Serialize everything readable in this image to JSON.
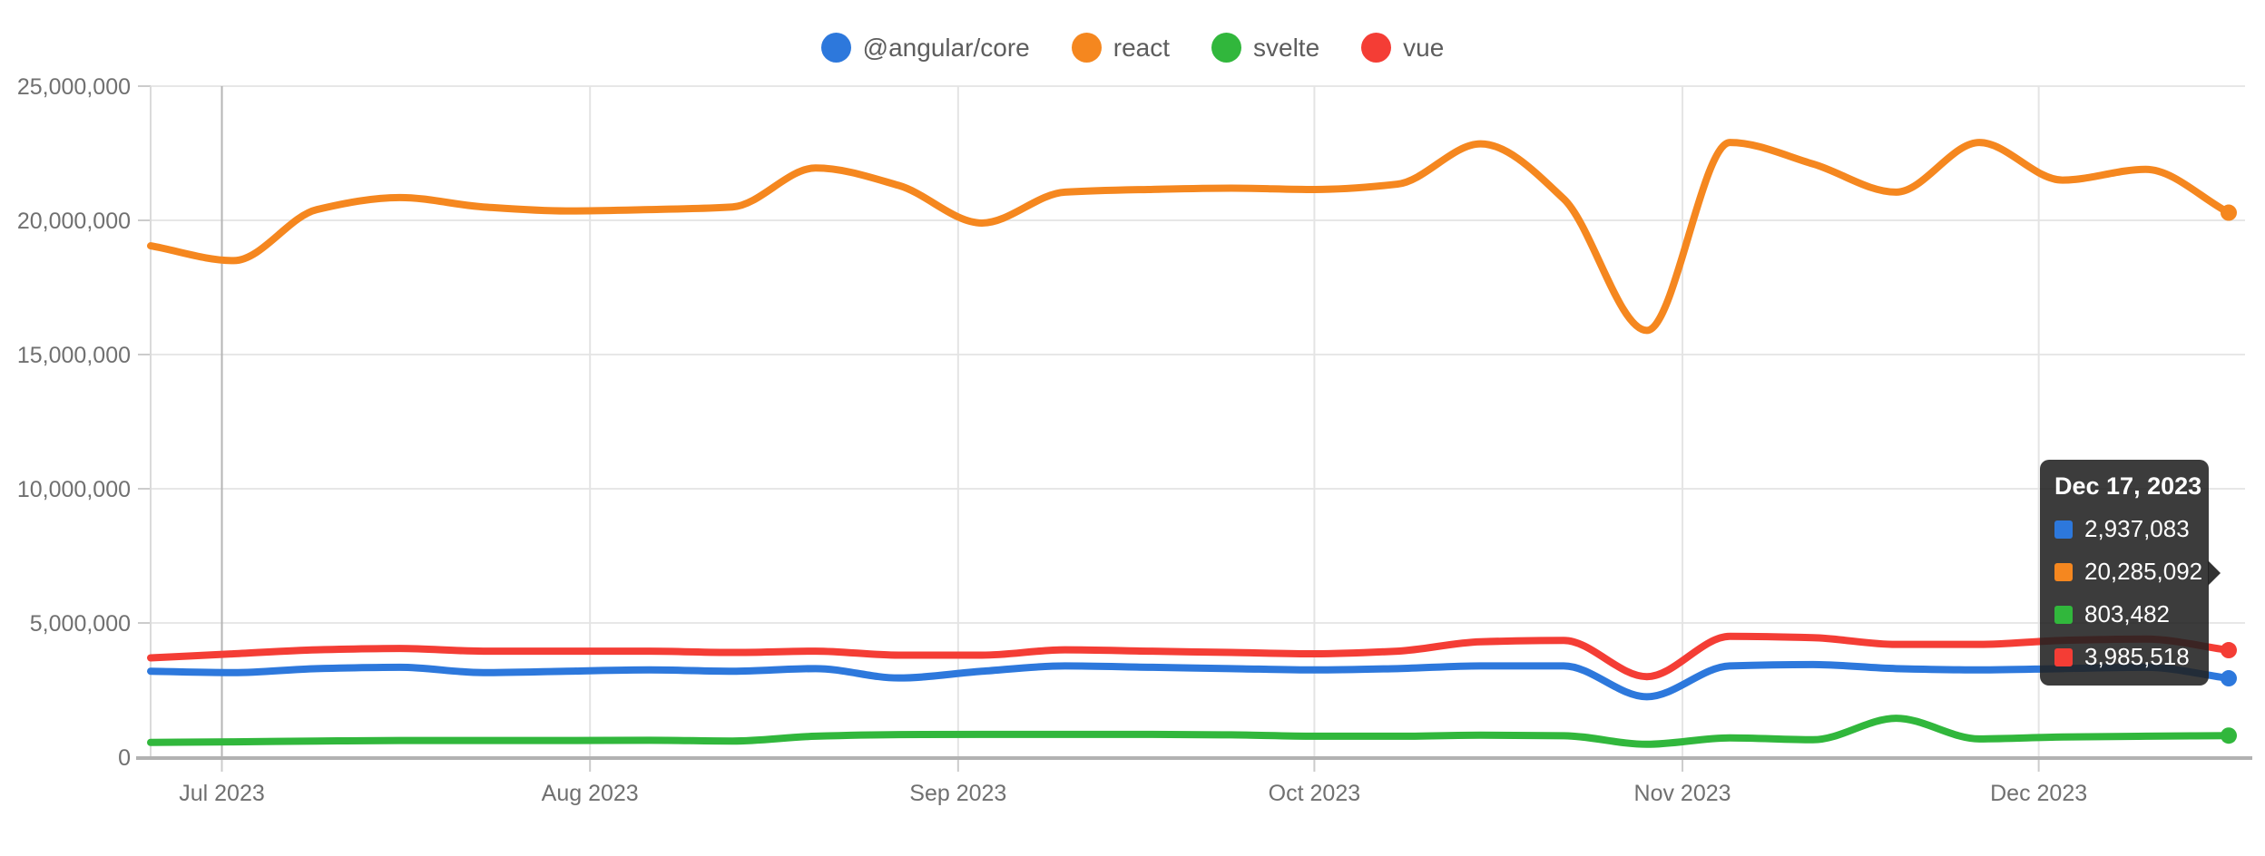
{
  "legend": {
    "items": [
      {
        "label": "@angular/core",
        "color": "#2d78dc"
      },
      {
        "label": "react",
        "color": "#f5871f"
      },
      {
        "label": "svelte",
        "color": "#31b73c"
      },
      {
        "label": "vue",
        "color": "#f43d35"
      }
    ]
  },
  "tooltip": {
    "title": "Dec 17, 2023",
    "rows": [
      {
        "series": "@angular/core",
        "color": "#2d78dc",
        "value": "2,937,083"
      },
      {
        "series": "react",
        "color": "#f5871f",
        "value": "20,285,092"
      },
      {
        "series": "svelte",
        "color": "#31b73c",
        "value": "803,482"
      },
      {
        "series": "vue",
        "color": "#f43d35",
        "value": "3,985,518"
      }
    ]
  },
  "chart_data": {
    "type": "line",
    "title": "",
    "xlabel": "",
    "ylabel": "",
    "x_start": "2023-06-25",
    "x_interval": "weekly",
    "x_end": "2023-12-17",
    "num_points": 26,
    "ylim": [
      0,
      25000000
    ],
    "grid": true,
    "legend_position": "top-center",
    "y_ticks": [
      {
        "value": 0,
        "label": "0"
      },
      {
        "value": 5000000,
        "label": "5,000,000"
      },
      {
        "value": 10000000,
        "label": "10,000,000"
      },
      {
        "value": 15000000,
        "label": "15,000,000"
      },
      {
        "value": 20000000,
        "label": "20,000,000"
      },
      {
        "value": 25000000,
        "label": "25,000,000"
      }
    ],
    "x_ticks": [
      {
        "label": "Jul 2023",
        "day_offset": 6,
        "emphasized": true
      },
      {
        "label": "Aug 2023",
        "day_offset": 37,
        "emphasized": false
      },
      {
        "label": "Sep 2023",
        "day_offset": 68,
        "emphasized": false
      },
      {
        "label": "Oct 2023",
        "day_offset": 98,
        "emphasized": false
      },
      {
        "label": "Nov 2023",
        "day_offset": 129,
        "emphasized": false
      },
      {
        "label": "Dec 2023",
        "day_offset": 159,
        "emphasized": false
      }
    ],
    "hovered_point": {
      "date": "Dec 17, 2023",
      "index": 25
    },
    "series": [
      {
        "name": "@angular/core",
        "color": "#2d78dc",
        "values": [
          3200000,
          3150000,
          3300000,
          3350000,
          3150000,
          3200000,
          3250000,
          3200000,
          3300000,
          2950000,
          3200000,
          3400000,
          3350000,
          3300000,
          3250000,
          3300000,
          3400000,
          3400000,
          2250000,
          3400000,
          3450000,
          3300000,
          3250000,
          3300000,
          3350000,
          2937083
        ]
      },
      {
        "name": "react",
        "color": "#f5871f",
        "values": [
          19050000,
          18500000,
          20400000,
          20850000,
          20500000,
          20350000,
          20400000,
          20500000,
          21950000,
          21300000,
          19900000,
          21050000,
          21150000,
          21200000,
          21150000,
          21350000,
          22850000,
          20800000,
          15900000,
          22900000,
          22100000,
          21050000,
          22900000,
          21500000,
          21900000,
          20285092
        ]
      },
      {
        "name": "svelte",
        "color": "#31b73c",
        "values": [
          550000,
          570000,
          600000,
          620000,
          620000,
          620000,
          630000,
          600000,
          780000,
          840000,
          850000,
          850000,
          850000,
          830000,
          780000,
          780000,
          820000,
          800000,
          480000,
          720000,
          650000,
          1450000,
          680000,
          750000,
          780000,
          803482
        ]
      },
      {
        "name": "vue",
        "color": "#f43d35",
        "values": [
          3700000,
          3850000,
          4000000,
          4050000,
          3950000,
          3950000,
          3950000,
          3900000,
          3950000,
          3800000,
          3800000,
          4000000,
          3950000,
          3900000,
          3850000,
          3950000,
          4300000,
          4350000,
          3000000,
          4500000,
          4450000,
          4200000,
          4200000,
          4350000,
          4400000,
          3985518
        ]
      }
    ],
    "styles": {
      "h_gridline_color": "#e7e7e7",
      "v_gridline_color": "#e4e4e4",
      "v_gridline_emphasized_color": "#b5b5b5",
      "plot_left_border_color": "#dadada",
      "axis_line_color": "#b2b2b2",
      "tick_color": "#cccccc",
      "axis_label_color": "#707070",
      "line_width": 8,
      "end_dot_radius": 9
    }
  }
}
